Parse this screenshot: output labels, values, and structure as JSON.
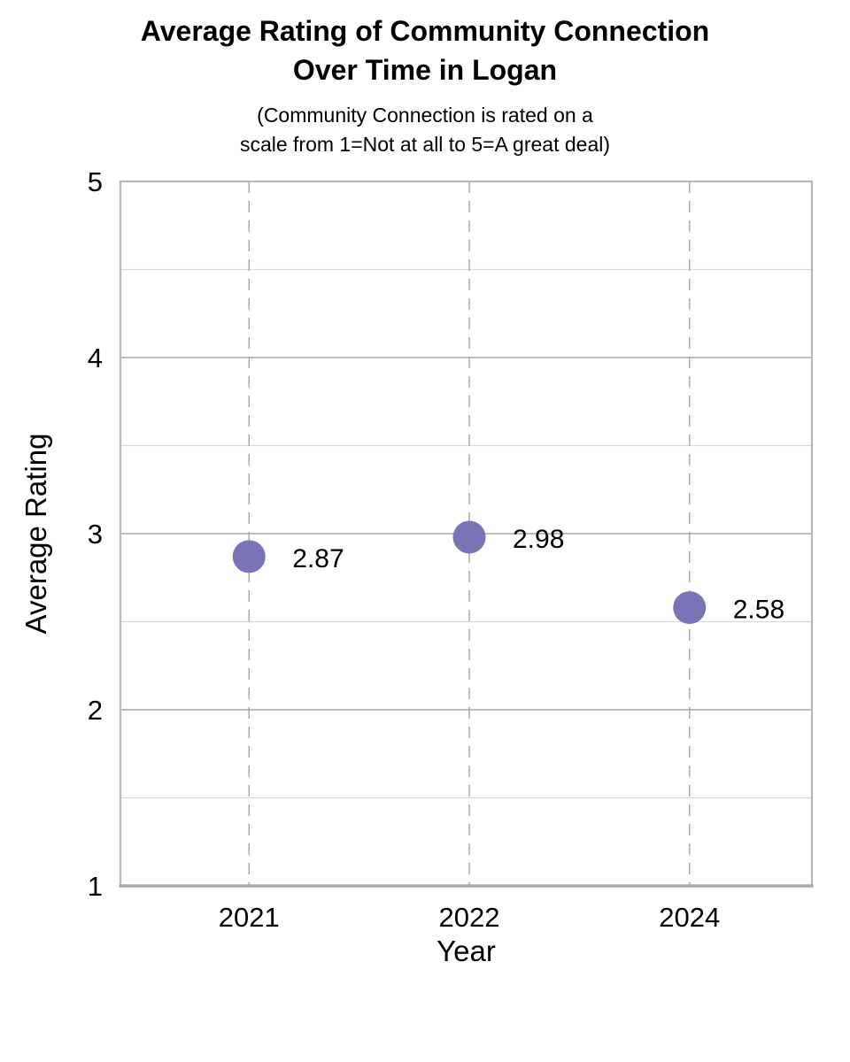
{
  "chart_data": {
    "type": "scatter",
    "title": "Average Rating of Community Connection Over Time in Logan",
    "title_lines": [
      "Average Rating of Community Connection",
      "Over Time in Logan"
    ],
    "subtitle": "(Community Connection is rated on a scale from 1=Not at all to 5=A great deal)",
    "subtitle_lines": [
      "(Community Connection is rated on a",
      "scale from 1=Not at all to 5=A great deal)"
    ],
    "xlabel": "Year",
    "ylabel": "Average Rating",
    "categories": [
      "2021",
      "2022",
      "2024"
    ],
    "values": [
      2.87,
      2.98,
      2.58
    ],
    "point_labels": [
      "2.87",
      "2.98",
      "2.58"
    ],
    "ylim": [
      1,
      5
    ],
    "y_major_ticks": [
      1,
      2,
      3,
      4,
      5
    ],
    "y_minor_step": 0.5,
    "grid": {
      "horizontal_major": true,
      "horizontal_minor": true,
      "vertical_dashed_at_categories": true
    },
    "legend_position": "none",
    "colors": {
      "marker": "#7a73b5",
      "grid_major": "#a6a6a6",
      "grid_minor": "#d9d9d9",
      "grid_dashed": "#ababab",
      "axis_line": "#a9a9a9",
      "plot_border": "#b7b7b7",
      "text": "#000000"
    }
  }
}
